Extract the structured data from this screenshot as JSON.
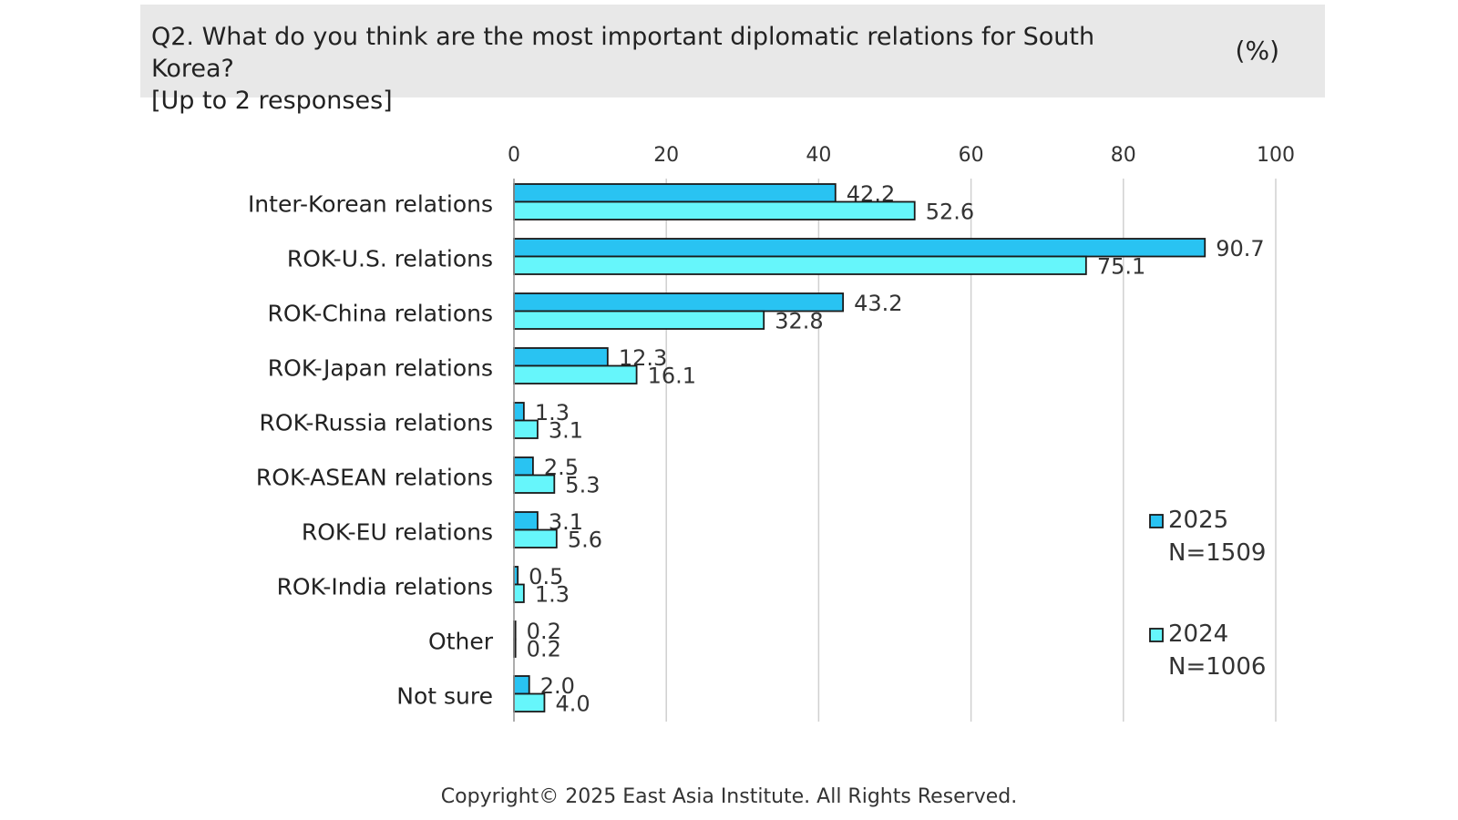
{
  "header": {
    "question_line1": "Q2. What do you think are the most important diplomatic relations for South Korea?",
    "question_line2": "[Up to 2 responses]",
    "unit": "(%)"
  },
  "footer": {
    "copyright": "Copyright© 2025 East Asia Institute. All Rights Reserved."
  },
  "colors": {
    "series_2025": "#29c3f2",
    "series_2024": "#66f6fb",
    "bar_border": "#1a1a1a",
    "grid": "#d0d0d0"
  },
  "chart_data": {
    "type": "bar",
    "orientation": "horizontal",
    "title": "",
    "xlabel": "",
    "ylabel": "",
    "xlim": [
      0,
      100
    ],
    "ticks": [
      0,
      20,
      40,
      60,
      80,
      100
    ],
    "grid": true,
    "legend_position": "right",
    "categories": [
      "Inter-Korean relations",
      "ROK-U.S. relations",
      "ROK-China relations",
      "ROK-Japan relations",
      "ROK-Russia relations",
      "ROK-ASEAN relations",
      "ROK-EU relations",
      "ROK-India relations",
      "Other",
      "Not sure"
    ],
    "series": [
      {
        "name": "2025",
        "sample": "N=1509",
        "labels": [
          "42.2",
          "90.7",
          "43.2",
          "12.3",
          "1.3",
          "2.5",
          "3.1",
          "0.5",
          "0.2",
          "2.0"
        ],
        "values": [
          42.2,
          90.7,
          43.2,
          12.3,
          1.3,
          2.5,
          3.1,
          0.5,
          0.2,
          2.0
        ]
      },
      {
        "name": "2024",
        "sample": "N=1006",
        "labels": [
          "52.6",
          "75.1",
          "32.8",
          "16.1",
          "3.1",
          "5.3",
          "5.6",
          "1.3",
          "0.2",
          "4.0"
        ],
        "values": [
          52.6,
          75.1,
          32.8,
          16.1,
          3.1,
          5.3,
          5.6,
          1.3,
          0.2,
          4.0
        ]
      }
    ]
  }
}
